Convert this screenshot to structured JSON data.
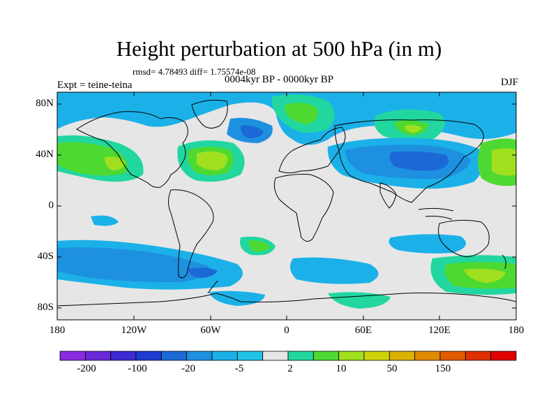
{
  "title": "Height perturbation at 500 hPa (in m)",
  "stats": "rmsd= 4.78493 diff= 1.75574e-08",
  "period": "0004kyr BP - 0000kyr BP",
  "experiment": "Expt = teine-teina",
  "season": "DJF",
  "axes": {
    "y_ticks": [
      "80N",
      "40N",
      "0",
      "40S",
      "80S"
    ],
    "x_ticks": [
      "180",
      "120W",
      "60W",
      "0",
      "60E",
      "120E",
      "180"
    ]
  },
  "colorbar": {
    "colors": [
      "#8a2be2",
      "#6a28d8",
      "#3c2ad2",
      "#1e3ccf",
      "#1b69d6",
      "#1e90e0",
      "#1bb1e8",
      "#20c4e8",
      "#e6e6e6",
      "#22d6a0",
      "#4dd932",
      "#a0e01e",
      "#cfd40a",
      "#dcb200",
      "#e08a00",
      "#e05a00",
      "#e03000",
      "#e00000"
    ],
    "labels": [
      "-200",
      "-100",
      "-20",
      "-5",
      "2",
      "10",
      "50",
      "150"
    ]
  },
  "anomaly_colors": {
    "neutral": "#e6e6e6",
    "weak_neg": "#1bb1e8",
    "mod_neg": "#1e90e0",
    "strong_neg": "#1b69d6",
    "weak_pos": "#22d6a0",
    "mod_pos": "#4dd932",
    "strong_pos": "#a0e01e"
  }
}
